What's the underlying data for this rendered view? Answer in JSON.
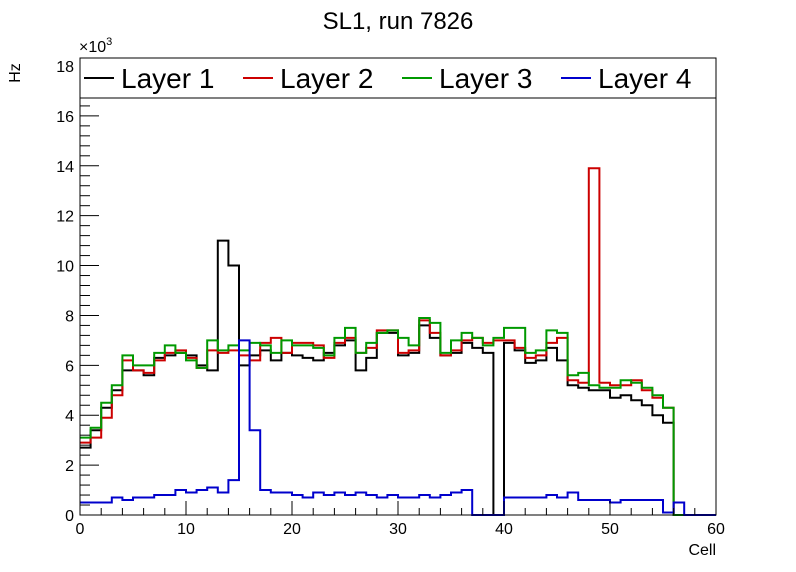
{
  "chart_data": {
    "type": "line",
    "title": "SL1, run 7826",
    "xlabel": "Cell",
    "ylabel": "Hz",
    "y_exponent_label": "×10",
    "y_exponent_power": "3",
    "xlim": [
      0,
      60
    ],
    "ylim": [
      0,
      18
    ],
    "x_ticks": [
      0,
      10,
      20,
      30,
      40,
      50,
      60
    ],
    "y_ticks": [
      0,
      2,
      4,
      6,
      8,
      10,
      12,
      14,
      16,
      18
    ],
    "x_tick_labels": [
      "0",
      "10",
      "20",
      "30",
      "40",
      "50",
      "60"
    ],
    "y_tick_labels": [
      "0",
      "2",
      "4",
      "6",
      "8",
      "10",
      "12",
      "14",
      "16",
      "18"
    ],
    "grid": false,
    "legend_position": "top",
    "bin_edges_start": 0,
    "bin_width": 1,
    "series": [
      {
        "name": "Layer 1",
        "color": "#000000",
        "values": [
          2.7,
          3.4,
          4.3,
          5.0,
          5.8,
          5.8,
          5.6,
          6.3,
          6.4,
          6.5,
          6.4,
          6.0,
          5.8,
          11.0,
          10.0,
          6.0,
          6.4,
          6.6,
          6.2,
          6.5,
          6.4,
          6.3,
          6.2,
          6.5,
          6.8,
          7.0,
          5.8,
          6.3,
          7.3,
          7.3,
          6.4,
          6.5,
          7.6,
          7.1,
          6.4,
          6.5,
          6.9,
          6.7,
          6.5,
          0,
          6.9,
          6.6,
          6.1,
          6.2,
          6.7,
          6.2,
          5.2,
          5.1,
          5.0,
          5.0,
          4.7,
          4.8,
          4.6,
          4.4,
          4.0,
          3.7,
          0,
          0,
          0,
          0
        ]
      },
      {
        "name": "Layer 2",
        "color": "#cc0000",
        "values": [
          2.9,
          3.1,
          3.9,
          4.8,
          6.2,
          5.8,
          5.7,
          6.2,
          6.5,
          6.6,
          6.3,
          5.9,
          6.6,
          6.5,
          6.6,
          6.4,
          6.2,
          6.9,
          7.1,
          6.5,
          6.9,
          6.9,
          6.8,
          6.3,
          6.9,
          7.1,
          6.5,
          6.7,
          7.4,
          7.4,
          6.5,
          6.6,
          7.8,
          7.3,
          6.4,
          6.6,
          7.0,
          7.1,
          6.9,
          7.0,
          7.0,
          6.7,
          6.3,
          6.4,
          6.9,
          7.1,
          5.4,
          5.3,
          13.9,
          5.3,
          5.2,
          5.2,
          5.4,
          5.0,
          4.7,
          4.3,
          0,
          0,
          0,
          0
        ]
      },
      {
        "name": "Layer 3",
        "color": "#009900",
        "values": [
          3.1,
          3.5,
          4.5,
          5.2,
          6.4,
          6.0,
          6.0,
          6.5,
          6.8,
          6.5,
          6.2,
          5.9,
          7.0,
          6.6,
          6.8,
          6.6,
          6.9,
          6.8,
          6.5,
          7.0,
          6.8,
          6.8,
          6.7,
          6.4,
          7.1,
          7.5,
          6.5,
          6.9,
          7.3,
          7.4,
          7.1,
          6.8,
          7.9,
          7.7,
          6.5,
          7.0,
          7.3,
          7.1,
          6.8,
          7.1,
          7.5,
          7.5,
          6.5,
          6.6,
          7.4,
          7.3,
          5.6,
          5.7,
          5.2,
          5.1,
          5.1,
          5.4,
          5.3,
          5.1,
          4.8,
          4.3,
          0,
          0,
          0,
          0
        ]
      },
      {
        "name": "Layer 4",
        "color": "#0000cc",
        "values": [
          0.5,
          0.5,
          0.5,
          0.7,
          0.6,
          0.7,
          0.7,
          0.8,
          0.8,
          1.0,
          0.9,
          1.0,
          1.1,
          0.9,
          1.4,
          7.0,
          3.4,
          1.0,
          0.9,
          0.9,
          0.8,
          0.7,
          0.9,
          0.8,
          0.9,
          0.8,
          0.9,
          0.8,
          0.7,
          0.8,
          0.7,
          0.7,
          0.8,
          0.7,
          0.8,
          0.9,
          1.0,
          0,
          0,
          0,
          0.7,
          0.7,
          0.7,
          0.7,
          0.8,
          0.7,
          0.9,
          0.6,
          0.6,
          0.6,
          0.5,
          0.6,
          0.6,
          0.6,
          0.6,
          0.1,
          0.5,
          0,
          0,
          0
        ]
      }
    ]
  }
}
